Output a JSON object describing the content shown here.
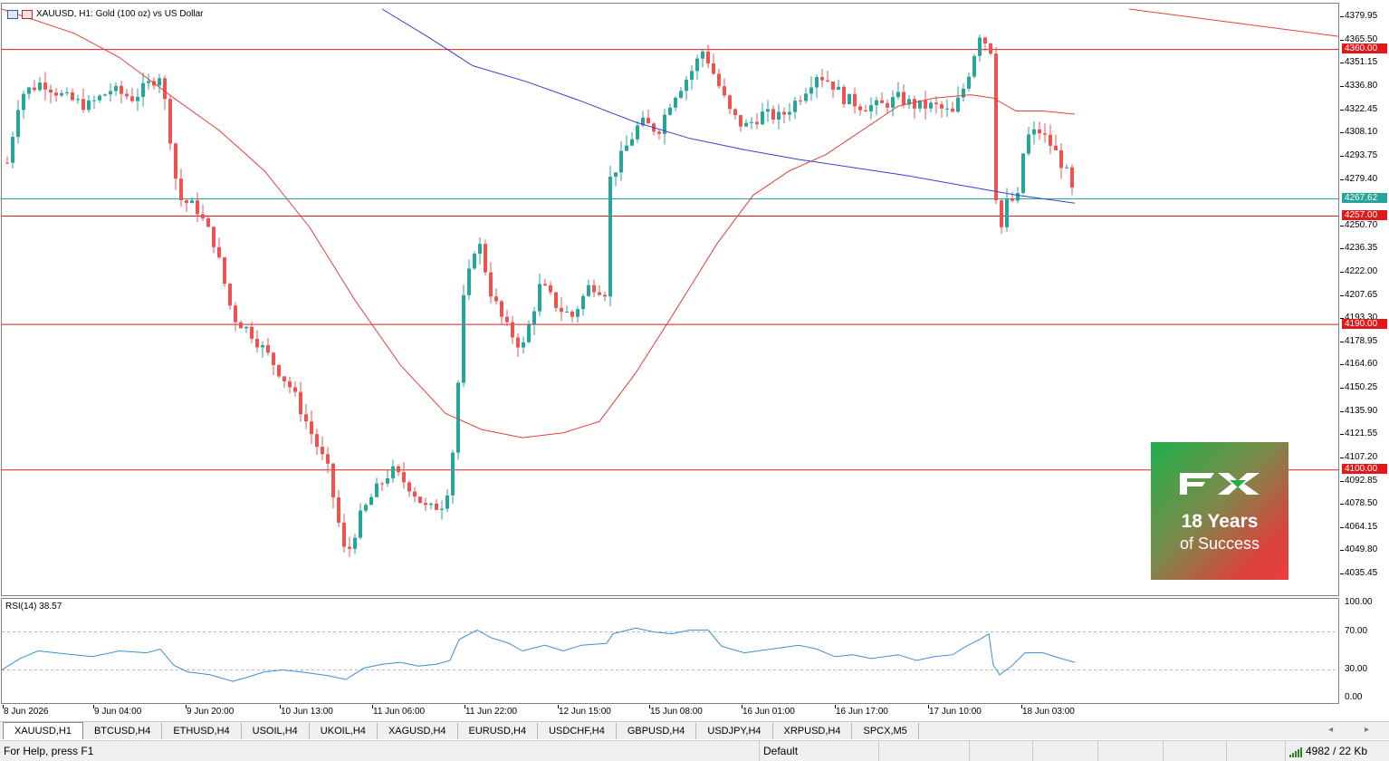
{
  "chart": {
    "title": "XAUUSD, H1:  Gold (100 oz) vs US Dollar",
    "rsi_label": "RSI(14) 38.57",
    "bull_color": "#26a69a",
    "bear_color": "#ef5350",
    "ma_fast_color": "#e0403a",
    "ma_slow_color": "#3a3fd0",
    "level_color": "#e01a1a",
    "current_price_color": "#26a69a"
  },
  "price_axis": {
    "ticks": [
      "4379.95",
      "4365.50",
      "4351.15",
      "4336.80",
      "4322.45",
      "4308.10",
      "4293.75",
      "4279.40",
      "4250.70",
      "4236.35",
      "4222.00",
      "4207.65",
      "4193.30",
      "4178.95",
      "4164.60",
      "4150.25",
      "4135.90",
      "4121.55",
      "4107.20",
      "4092.85",
      "4078.50",
      "4064.15",
      "4049.80",
      "4035.45"
    ],
    "levels": [
      "4360.00",
      "4257.00",
      "4190.00",
      "4100.00"
    ],
    "current_price": "4267.62"
  },
  "rsi_axis": {
    "ticks": [
      "100.00",
      "70.00",
      "30.00",
      "0.00"
    ]
  },
  "time_axis": {
    "labels": [
      "8 Jun 2026",
      "9 Jun 04:00",
      "9 Jun 20:00",
      "10 Jun 13:00",
      "11 Jun 06:00",
      "11 Jun 22:00",
      "12 Jun 15:00",
      "15 Jun 08:00",
      "16 Jun 01:00",
      "16 Jun 17:00",
      "17 Jun 10:00",
      "18 Jun 03:00"
    ]
  },
  "promo": {
    "logo": "FX",
    "line1": "18 Years",
    "line2": "of Success"
  },
  "tabs": [
    "XAUUSD,H1",
    "BTCUSD,H4",
    "ETHUSD,H4",
    "USOIL,H4",
    "UKOIL,H4",
    "XAGUSD,H4",
    "EURUSD,H4",
    "USDCHF,H4",
    "GBPUSD,H4",
    "USDJPY,H4",
    "XRPUSD,H4",
    "SPCX,M5"
  ],
  "tab_arrows": "◂ ▸",
  "status": {
    "help": "For Help, press F1",
    "profile": "Default",
    "traffic": "4982 / 22 Kb"
  }
}
